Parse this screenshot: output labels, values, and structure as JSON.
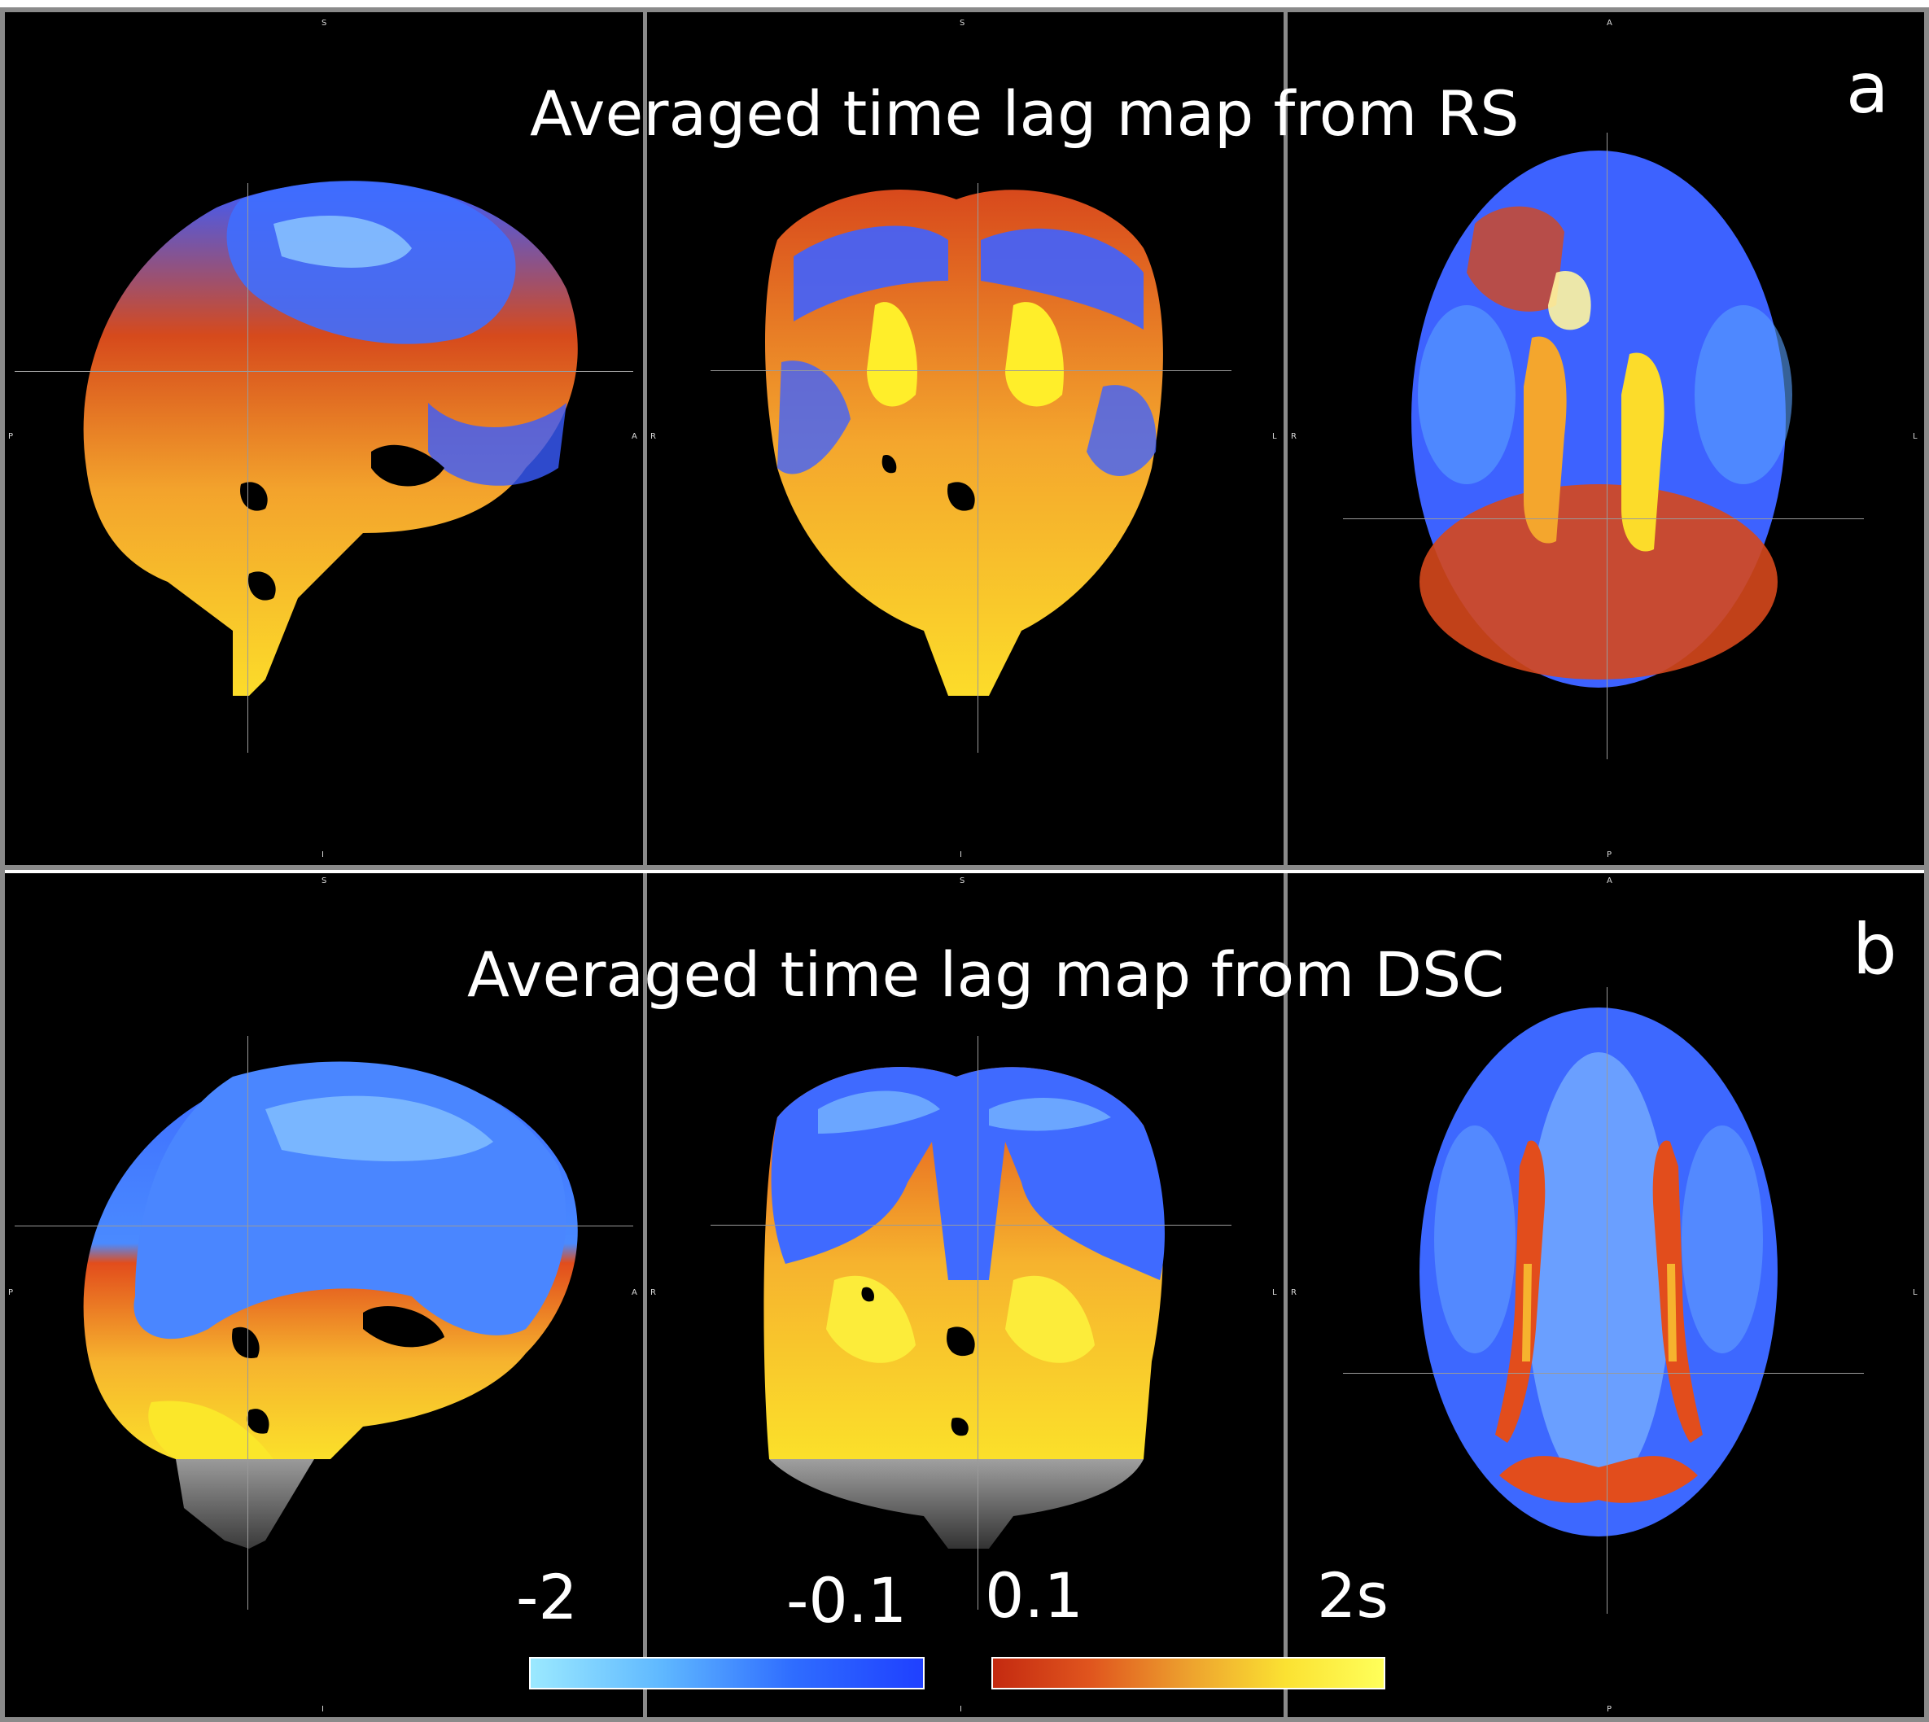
{
  "panels": {
    "a": {
      "letter": "a",
      "title": "Averaged time lag map from RS"
    },
    "b": {
      "letter": "b",
      "title": "Averaged time lag map from DSC"
    }
  },
  "orientation": {
    "sagittal": {
      "top": "S",
      "bottom": "I",
      "left": "P",
      "right": "A"
    },
    "coronal": {
      "top": "S",
      "bottom": "I",
      "left": "R",
      "right": "L"
    },
    "axial": {
      "top": "A",
      "bottom": "P",
      "left": "R",
      "right": "L"
    }
  },
  "colorbar": {
    "cool_min": "-2",
    "cool_max": "-0.1",
    "hot_min": "0.1",
    "hot_max": "2s"
  },
  "colors": {
    "cool_light": "#9be9ff",
    "cool_dark": "#1f40ff",
    "hot_dark": "#c42a10",
    "hot_light": "#ffff5a",
    "frame": "#8a8a8a"
  }
}
